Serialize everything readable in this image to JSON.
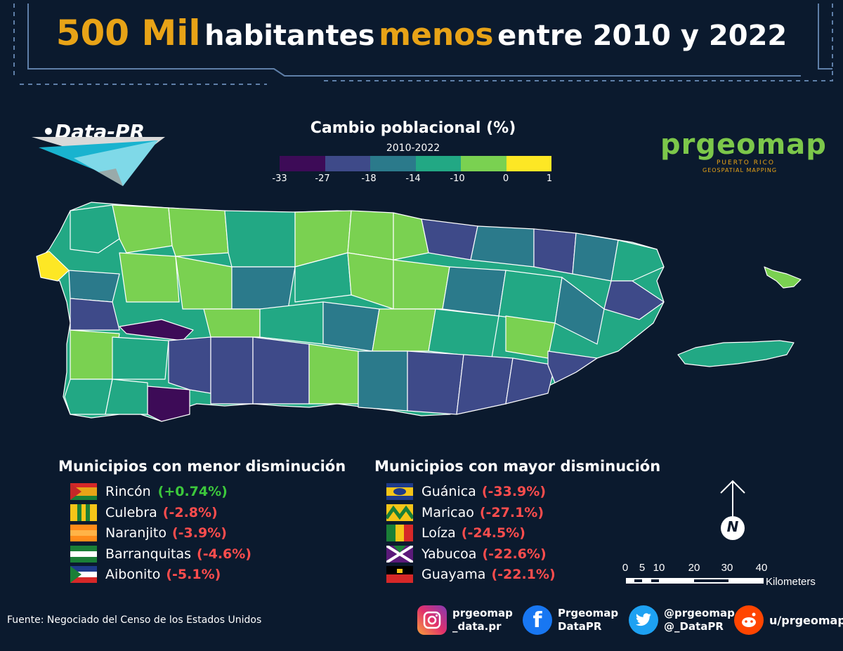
{
  "title": {
    "part1": "500 Mil",
    "part2": "habitantes",
    "part3": "menos",
    "part4": "entre 2010 y 2022"
  },
  "brand": {
    "datapr_label": "•Data-PR",
    "prgeomap_text": "prgeomap",
    "prgeomap_sub1": "PUERTO RICO",
    "prgeomap_sub2": "GEOSPATIAL MAPPING"
  },
  "map_legend": {
    "title": "Cambio poblacional (%)",
    "subtitle": "2010-2022",
    "ticks": [
      "-33",
      "-27",
      "-18",
      "-14",
      "-10",
      "0",
      "1"
    ],
    "colors": [
      "#3d0b57",
      "#3e4a89",
      "#2b7a8b",
      "#22a884",
      "#7ad151",
      "#fde725"
    ]
  },
  "menor": {
    "heading": "Municipios con menor disminución",
    "items": [
      {
        "name": "Rincón",
        "value": "(+0.74%)"
      },
      {
        "name": "Culebra",
        "value": "(-2.8%)"
      },
      {
        "name": "Naranjito",
        "value": "(-3.9%)"
      },
      {
        "name": "Barranquitas",
        "value": "(-4.6%)"
      },
      {
        "name": "Aibonito",
        "value": "(-5.1%)"
      }
    ]
  },
  "mayor": {
    "heading": "Municipios con mayor disminución",
    "items": [
      {
        "name": "Guánica",
        "value": "(-33.9%)"
      },
      {
        "name": "Maricao",
        "value": "(-27.1%)"
      },
      {
        "name": "Loíza",
        "value": "(-24.5%)"
      },
      {
        "name": "Yabucoa",
        "value": "(-22.6%)"
      },
      {
        "name": "Guayama",
        "value": "(-22.1%)"
      }
    ]
  },
  "scale": {
    "ticks": [
      "0",
      "5",
      "10",
      "20",
      "30",
      "40"
    ],
    "unit": "Kilometers",
    "north": "N"
  },
  "source": "Fuente: Negociado del Censo de los Estados Unidos",
  "social": {
    "instagram": {
      "icon": "instagram-icon",
      "line1": "prgeomap",
      "line2": "_data.pr"
    },
    "facebook": {
      "icon": "facebook-icon",
      "line1": "Prgeomap",
      "line2": "DataPR"
    },
    "twitter": {
      "icon": "twitter-icon",
      "line1": "@prgeomap",
      "line2": "@_DataPR"
    },
    "reddit": {
      "icon": "reddit-icon",
      "line1": "u/prgeomap"
    }
  }
}
